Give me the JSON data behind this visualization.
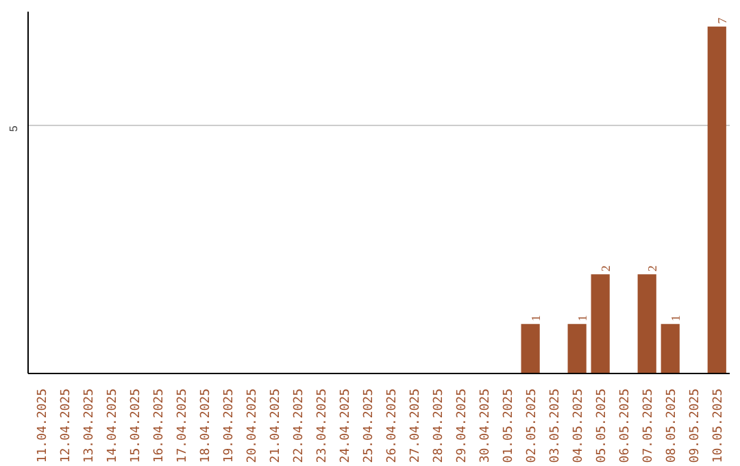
{
  "chart_data": {
    "type": "bar",
    "categories": [
      "11.04.2025",
      "12.04.2025",
      "13.04.2025",
      "14.04.2025",
      "15.04.2025",
      "16.04.2025",
      "17.04.2025",
      "18.04.2025",
      "19.04.2025",
      "20.04.2025",
      "21.04.2025",
      "22.04.2025",
      "23.04.2025",
      "24.04.2025",
      "25.04.2025",
      "26.04.2025",
      "27.04.2025",
      "28.04.2025",
      "29.04.2025",
      "30.04.2025",
      "01.05.2025",
      "02.05.2025",
      "03.05.2025",
      "04.05.2025",
      "05.05.2025",
      "06.05.2025",
      "07.05.2025",
      "08.05.2025",
      "09.05.2025",
      "10.05.2025"
    ],
    "values": [
      null,
      null,
      null,
      null,
      null,
      null,
      null,
      null,
      null,
      null,
      null,
      null,
      null,
      null,
      null,
      null,
      null,
      null,
      null,
      null,
      null,
      1,
      null,
      1,
      2,
      null,
      2,
      1,
      null,
      7
    ],
    "color": "#a0522d",
    "data_labels": true,
    "ylim": [
      0,
      7.3
    ],
    "yticks": [
      5
    ],
    "grid": "y"
  }
}
